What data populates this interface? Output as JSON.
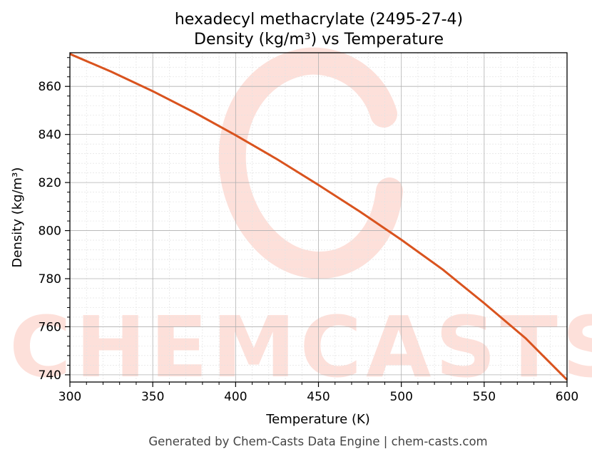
{
  "chart_data": {
    "type": "line",
    "title_lines": [
      "hexadecyl methacrylate (2495-27-4)",
      "Density (kg/m³) vs Temperature"
    ],
    "xlabel": "Temperature (K)",
    "ylabel": "Density (kg/m³)",
    "xlim": [
      300,
      600
    ],
    "ylim": [
      737,
      874
    ],
    "xticks": [
      300,
      350,
      400,
      450,
      500,
      550,
      600
    ],
    "yticks": [
      740,
      760,
      780,
      800,
      820,
      840,
      860
    ],
    "grid": true,
    "series": [
      {
        "x": [
          300,
          325,
          350,
          375,
          400,
          425,
          450,
          475,
          500,
          525,
          550,
          575,
          600
        ],
        "y": [
          873.5,
          866.1,
          858.0,
          849.2,
          839.7,
          829.7,
          819.0,
          807.9,
          796.2,
          783.8,
          769.8,
          755.2,
          737.9
        ]
      }
    ]
  },
  "colors": {
    "line": "#d9531e",
    "watermark": "#fde0da",
    "grid_major": "#b0b0b0",
    "grid_minor": "#e3e3e3"
  },
  "watermark": "CHEMCASTS",
  "footer": "Generated by Chem-Casts Data Engine | chem-casts.com"
}
